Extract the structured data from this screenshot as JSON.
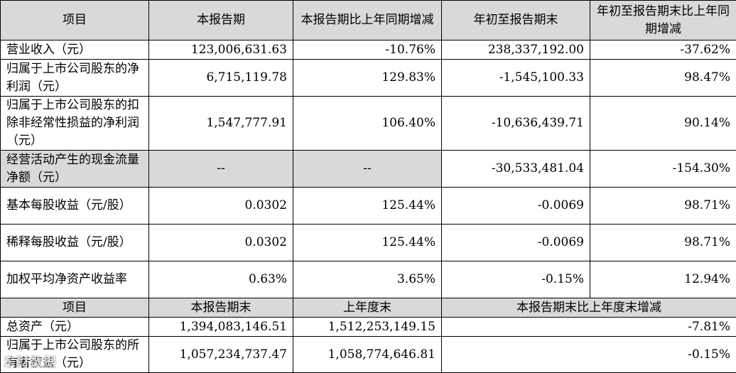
{
  "header1": [
    "项目",
    "本报告期",
    "本报告期比上年同期增减",
    "年初至报告期末",
    "年初至报告期末比上年同期增减"
  ],
  "rows1": [
    {
      "label": "营业收入（元）",
      "v": [
        "123,006,631.63",
        "-10.76%",
        "238,337,192.00",
        "-37.62%"
      ]
    },
    {
      "label": "归属于上市公司股东的净利润（元）",
      "v": [
        "6,715,119.78",
        "129.83%",
        "-1,545,100.33",
        "98.47%"
      ]
    },
    {
      "label": "归属于上市公司股东的扣除非经常性损益的净利润（元）",
      "v": [
        "1,547,777.91",
        "106.40%",
        "-10,636,439.71",
        "90.14%"
      ]
    },
    {
      "label": "经营活动产生的现金流量净额（元）",
      "v": [
        "--",
        "--",
        "-30,533,481.04",
        "-154.30%"
      ]
    },
    {
      "label": "基本每股收益（元/股）",
      "v": [
        "0.0302",
        "125.44%",
        "-0.0069",
        "98.71%"
      ]
    },
    {
      "label": "稀释每股收益（元/股）",
      "v": [
        "0.0302",
        "125.44%",
        "-0.0069",
        "98.71%"
      ]
    },
    {
      "label": "加权平均净资产收益率",
      "v": [
        "0.63%",
        "3.65%",
        "-0.15%",
        "12.94%"
      ]
    }
  ],
  "header2": [
    "项目",
    "本报告期末",
    "上年度末",
    "本报告期末比上年度末增减"
  ],
  "rows2": [
    {
      "label": "总资产（元）",
      "v": [
        "1,394,083,146.51",
        "1,512,253,149.15",
        "-7.81%"
      ]
    },
    {
      "label": "归属于上市公司股东的所有者权益（元）",
      "v": [
        "1,057,234,737.47",
        "1,058,774,646.81",
        "-0.15%"
      ]
    }
  ],
  "watermark": "东财数据"
}
